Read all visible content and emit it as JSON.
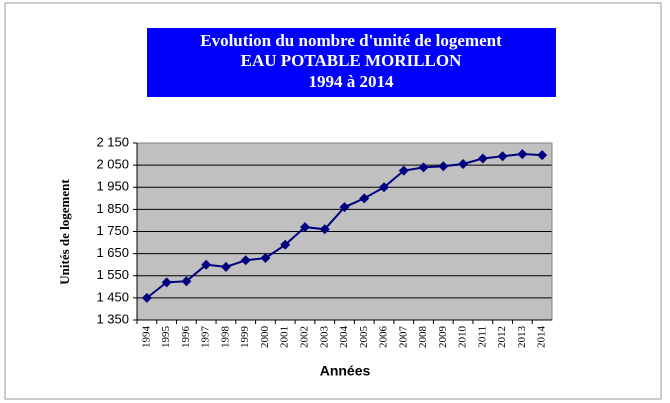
{
  "chart_data": {
    "type": "line",
    "title": [
      "Evolution du nombre d'unité de logement",
      "EAU POTABLE  MORILLON",
      "1994 à 2014"
    ],
    "x_label": "Années",
    "y_label": "Unités de logement",
    "categories": [
      "1994",
      "1995",
      "1996",
      "1997",
      "1998",
      "1999",
      "2000",
      "2001",
      "2002",
      "2003",
      "2004",
      "2005",
      "2006",
      "2007",
      "2008",
      "2009",
      "2010",
      "2011",
      "2012",
      "2013",
      "2014"
    ],
    "series": [
      {
        "color": "#000080",
        "values": [
          1450,
          1520,
          1525,
          1600,
          1590,
          1620,
          1630,
          1690,
          1770,
          1760,
          1860,
          1900,
          1950,
          2025,
          2040,
          2045,
          2055,
          2080,
          2090,
          2100,
          2095
        ]
      }
    ],
    "ylim": [
      1350,
      2150
    ],
    "yticks": [
      {
        "value": 1350,
        "label": "1 350"
      },
      {
        "value": 1450,
        "label": "1 450"
      },
      {
        "value": 1550,
        "label": "1 550"
      },
      {
        "value": 1650,
        "label": "1 650"
      },
      {
        "value": 1750,
        "label": "1 750"
      },
      {
        "value": 1850,
        "label": "1 850"
      },
      {
        "value": 1950,
        "label": "1 950"
      },
      {
        "value": 2050,
        "label": "2 050"
      },
      {
        "value": 2150,
        "label": "2 150"
      }
    ],
    "grid": true,
    "title_color": "#0000ff",
    "plot_background": "#c0c0c0"
  }
}
